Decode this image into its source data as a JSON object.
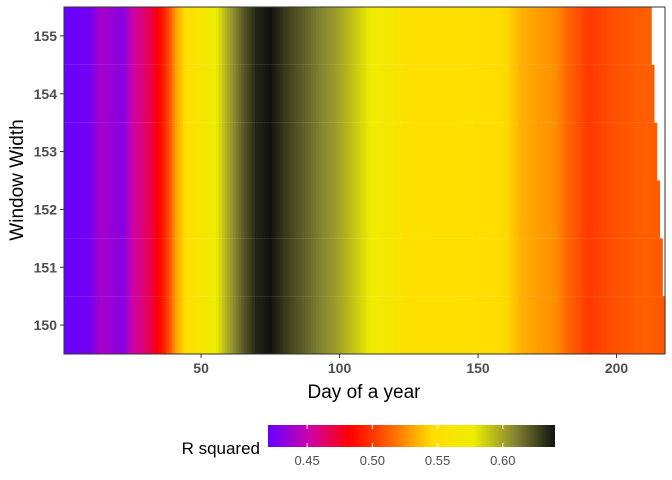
{
  "chart_data": {
    "type": "heatmap",
    "xlabel": "Day of a year",
    "ylabel": "Window Width",
    "x_ticks": [
      50,
      100,
      150,
      200
    ],
    "y_ticks": [
      150,
      151,
      152,
      153,
      154,
      155
    ],
    "xlim": [
      0.5,
      217.5
    ],
    "ylim": [
      149.5,
      155.5
    ],
    "grid": false,
    "legend": {
      "title": "R squared",
      "position": "bottom",
      "range": [
        0.42,
        0.64
      ],
      "ticks": [
        0.45,
        0.5,
        0.55,
        0.6
      ],
      "tick_labels": [
        "0.45",
        "0.50",
        "0.55",
        "0.60"
      ],
      "colors": [
        "#6600ff",
        "#cc00aa",
        "#ff0000",
        "#ff6600",
        "#ffdd00",
        "#eeee00",
        "#888833",
        "#111111"
      ]
    },
    "rows": [
      {
        "window": 150,
        "end_day": 217
      },
      {
        "window": 151,
        "end_day": 216
      },
      {
        "window": 152,
        "end_day": 215
      },
      {
        "window": 153,
        "end_day": 214
      },
      {
        "window": 154,
        "end_day": 213
      },
      {
        "window": 155,
        "end_day": 212
      }
    ],
    "profile": [
      {
        "day": 1,
        "r2": 0.42
      },
      {
        "day": 10,
        "r2": 0.425
      },
      {
        "day": 14,
        "r2": 0.44
      },
      {
        "day": 22,
        "r2": 0.43
      },
      {
        "day": 25,
        "r2": 0.45
      },
      {
        "day": 32,
        "r2": 0.47
      },
      {
        "day": 37,
        "r2": 0.495
      },
      {
        "day": 39,
        "r2": 0.512
      },
      {
        "day": 41,
        "r2": 0.53
      },
      {
        "day": 45,
        "r2": 0.55
      },
      {
        "day": 50,
        "r2": 0.56
      },
      {
        "day": 55,
        "r2": 0.575
      },
      {
        "day": 60,
        "r2": 0.6
      },
      {
        "day": 65,
        "r2": 0.62
      },
      {
        "day": 70,
        "r2": 0.635
      },
      {
        "day": 75,
        "r2": 0.64
      },
      {
        "day": 80,
        "r2": 0.63
      },
      {
        "day": 90,
        "r2": 0.615
      },
      {
        "day": 100,
        "r2": 0.6
      },
      {
        "day": 110,
        "r2": 0.58
      },
      {
        "day": 120,
        "r2": 0.56
      },
      {
        "day": 125,
        "r2": 0.55
      },
      {
        "day": 135,
        "r2": 0.552
      },
      {
        "day": 150,
        "r2": 0.548
      },
      {
        "day": 160,
        "r2": 0.545
      },
      {
        "day": 165,
        "r2": 0.535
      },
      {
        "day": 170,
        "r2": 0.53
      },
      {
        "day": 178,
        "r2": 0.525
      },
      {
        "day": 182,
        "r2": 0.515
      },
      {
        "day": 190,
        "r2": 0.5
      },
      {
        "day": 200,
        "r2": 0.508
      },
      {
        "day": 210,
        "r2": 0.512
      },
      {
        "day": 217,
        "r2": 0.51
      }
    ]
  }
}
